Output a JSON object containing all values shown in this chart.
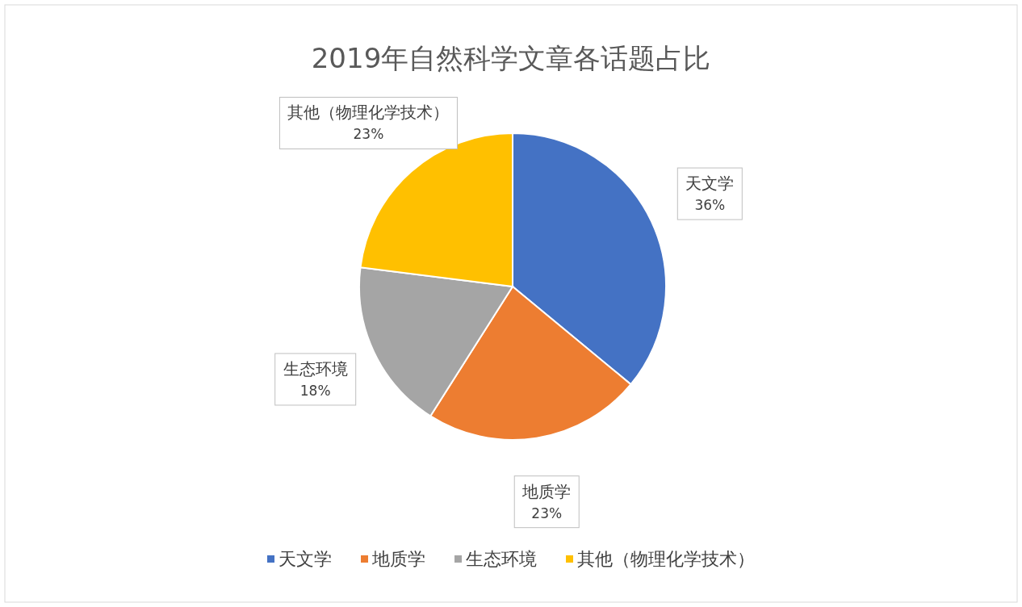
{
  "chart_data": {
    "type": "pie",
    "title": "2019年自然科学文章各话题占比",
    "categories": [
      "天文学",
      "地质学",
      "生态环境",
      "其他（物理化学技术）"
    ],
    "values": [
      36,
      23,
      18,
      23
    ],
    "value_labels": [
      "36%",
      "23%",
      "18%",
      "23%"
    ],
    "colors": [
      "#4472c4",
      "#ed7d31",
      "#a5a5a5",
      "#ffc000"
    ],
    "legend": "bottom"
  }
}
